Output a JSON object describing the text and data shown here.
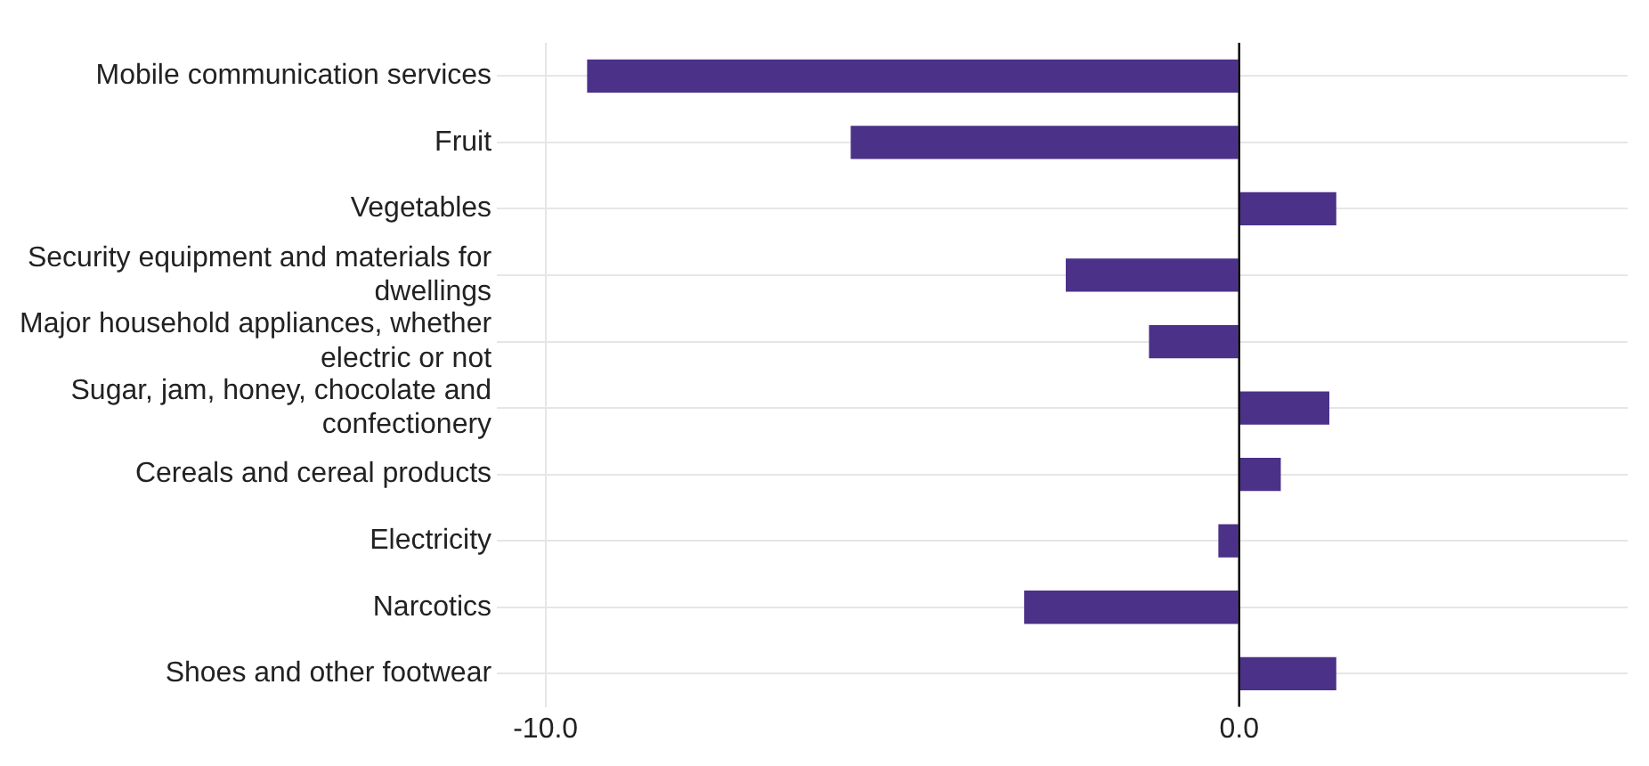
{
  "chart_data": {
    "type": "bar",
    "orientation": "horizontal",
    "categories": [
      "Mobile communication services",
      "Fruit",
      "Vegetables",
      "Security equipment and materials for dwellings",
      "Major household appliances, whether electric or not",
      "Sugar, jam, honey, chocolate and confectionery",
      "Cereals and cereal products",
      "Electricity",
      "Narcotics",
      "Shoes and other footwear"
    ],
    "values": [
      -9.4,
      -5.6,
      1.4,
      -2.5,
      -1.3,
      1.3,
      0.6,
      -0.3,
      -3.1,
      1.4
    ],
    "color": "#4b3188",
    "xlim": [
      -10.7,
      5.6
    ],
    "xticks": [
      {
        "value": -10,
        "label": "-10.0"
      },
      {
        "value": 0,
        "label": "0.0"
      }
    ],
    "ref_lines": [
      {
        "axis": "x",
        "value": 0,
        "color": "#000000"
      }
    ],
    "grid": true
  }
}
